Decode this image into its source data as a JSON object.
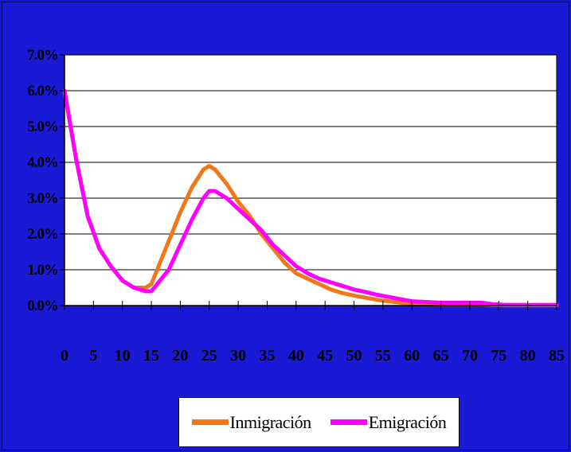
{
  "chart_data": {
    "type": "line",
    "x": [
      0,
      2,
      4,
      6,
      8,
      10,
      12,
      14,
      15,
      16,
      18,
      20,
      22,
      24,
      25,
      26,
      28,
      30,
      32,
      34,
      36,
      38,
      40,
      42,
      44,
      46,
      48,
      50,
      52,
      54,
      56,
      58,
      60,
      65,
      70,
      72,
      74,
      76,
      80,
      85
    ],
    "series": [
      {
        "name": "Inmigración",
        "color": "#f07818",
        "values": [
          0.06,
          0.041,
          0.025,
          0.016,
          0.011,
          0.007,
          0.005,
          0.005,
          0.006,
          0.01,
          0.018,
          0.026,
          0.033,
          0.038,
          0.039,
          0.038,
          0.034,
          0.029,
          0.025,
          0.02,
          0.016,
          0.012,
          0.009,
          0.0075,
          0.006,
          0.0045,
          0.0035,
          0.0028,
          0.0022,
          0.0016,
          0.0012,
          0.0008,
          0.0005,
          0.0003,
          0.0003,
          0.0003,
          0.0002,
          0.0001,
          0.0001,
          0.0001
        ]
      },
      {
        "name": "Emigración",
        "color": "#ff00ff",
        "values": [
          0.06,
          0.041,
          0.025,
          0.016,
          0.011,
          0.007,
          0.005,
          0.004,
          0.004,
          0.006,
          0.01,
          0.017,
          0.024,
          0.03,
          0.032,
          0.032,
          0.03,
          0.027,
          0.024,
          0.021,
          0.017,
          0.014,
          0.011,
          0.009,
          0.0075,
          0.0065,
          0.0055,
          0.0045,
          0.0038,
          0.003,
          0.0024,
          0.0018,
          0.0012,
          0.0008,
          0.0008,
          0.0008,
          0.0004,
          0.0002,
          0.0002,
          0.0002
        ]
      }
    ],
    "y_ticks": [
      "0.0%",
      "1.0%",
      "2.0%",
      "3.0%",
      "4.0%",
      "5.0%",
      "6.0%",
      "7.0%"
    ],
    "x_ticks": [
      "0",
      "5",
      "10",
      "15",
      "20",
      "25",
      "30",
      "35",
      "40",
      "45",
      "50",
      "55",
      "60",
      "65",
      "70",
      "75",
      "80",
      "85"
    ],
    "xlim": [
      0,
      85
    ],
    "ylim": [
      0,
      0.07
    ],
    "grid": "horizontal",
    "legend_position": "bottom"
  }
}
